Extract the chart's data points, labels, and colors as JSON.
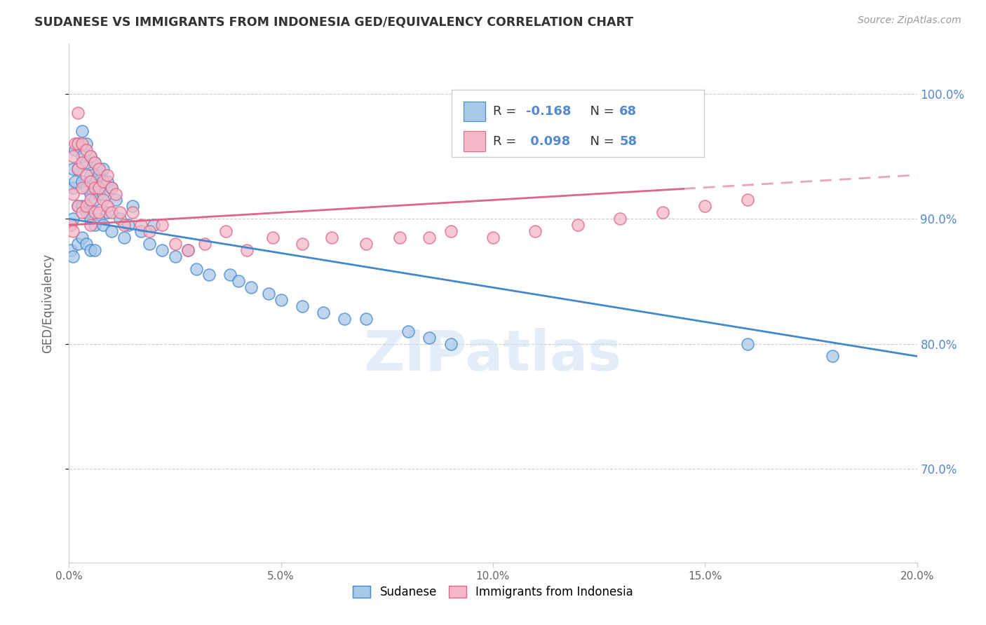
{
  "title": "SUDANESE VS IMMIGRANTS FROM INDONESIA GED/EQUIVALENCY CORRELATION CHART",
  "source": "Source: ZipAtlas.com",
  "ylabel": "GED/Equivalency",
  "yticks": [
    0.7,
    0.8,
    0.9,
    1.0
  ],
  "ytick_labels": [
    "70.0%",
    "80.0%",
    "90.0%",
    "100.0%"
  ],
  "xticks": [
    0.0,
    0.05,
    0.1,
    0.15,
    0.2
  ],
  "xtick_labels": [
    "0.0%",
    "5.0%",
    "10.0%",
    "15.0%",
    "20.0%"
  ],
  "xmin": 0.0,
  "xmax": 0.2,
  "ymin": 0.625,
  "ymax": 1.04,
  "blue_color": "#a8c8e8",
  "pink_color": "#f4b8c8",
  "blue_line_color": "#4488cc",
  "pink_line_color": "#dd6688",
  "watermark": "ZIPatlas",
  "legend_blue_R": "-0.168",
  "legend_blue_N": "68",
  "legend_pink_R": "0.098",
  "legend_pink_N": "58",
  "sudanese_x": [
    0.0005,
    0.001,
    0.001,
    0.001,
    0.001,
    0.0015,
    0.0015,
    0.002,
    0.002,
    0.002,
    0.002,
    0.003,
    0.003,
    0.003,
    0.003,
    0.003,
    0.004,
    0.004,
    0.004,
    0.004,
    0.004,
    0.005,
    0.005,
    0.005,
    0.005,
    0.005,
    0.006,
    0.006,
    0.006,
    0.006,
    0.006,
    0.007,
    0.007,
    0.007,
    0.008,
    0.008,
    0.008,
    0.009,
    0.009,
    0.01,
    0.01,
    0.011,
    0.012,
    0.013,
    0.014,
    0.015,
    0.017,
    0.019,
    0.02,
    0.022,
    0.025,
    0.028,
    0.03,
    0.033,
    0.038,
    0.04,
    0.043,
    0.047,
    0.05,
    0.055,
    0.06,
    0.065,
    0.07,
    0.08,
    0.085,
    0.09,
    0.16,
    0.18
  ],
  "sudanese_y": [
    0.875,
    0.925,
    0.94,
    0.9,
    0.87,
    0.955,
    0.93,
    0.96,
    0.94,
    0.91,
    0.88,
    0.97,
    0.95,
    0.93,
    0.91,
    0.885,
    0.96,
    0.945,
    0.925,
    0.905,
    0.88,
    0.95,
    0.935,
    0.92,
    0.9,
    0.875,
    0.945,
    0.93,
    0.915,
    0.895,
    0.875,
    0.935,
    0.92,
    0.9,
    0.94,
    0.92,
    0.895,
    0.93,
    0.905,
    0.925,
    0.89,
    0.915,
    0.9,
    0.885,
    0.895,
    0.91,
    0.89,
    0.88,
    0.895,
    0.875,
    0.87,
    0.875,
    0.86,
    0.855,
    0.855,
    0.85,
    0.845,
    0.84,
    0.835,
    0.83,
    0.825,
    0.82,
    0.82,
    0.81,
    0.805,
    0.8,
    0.8,
    0.79
  ],
  "indonesia_x": [
    0.0005,
    0.001,
    0.001,
    0.001,
    0.0015,
    0.002,
    0.002,
    0.002,
    0.002,
    0.003,
    0.003,
    0.003,
    0.003,
    0.004,
    0.004,
    0.004,
    0.005,
    0.005,
    0.005,
    0.005,
    0.006,
    0.006,
    0.006,
    0.007,
    0.007,
    0.007,
    0.008,
    0.008,
    0.009,
    0.009,
    0.01,
    0.01,
    0.011,
    0.012,
    0.013,
    0.015,
    0.017,
    0.019,
    0.022,
    0.025,
    0.028,
    0.032,
    0.037,
    0.042,
    0.048,
    0.055,
    0.062,
    0.07,
    0.078,
    0.085,
    0.09,
    0.1,
    0.11,
    0.12,
    0.13,
    0.14,
    0.15,
    0.16
  ],
  "indonesia_y": [
    0.895,
    0.92,
    0.95,
    0.89,
    0.96,
    0.985,
    0.96,
    0.94,
    0.91,
    0.96,
    0.945,
    0.925,
    0.905,
    0.955,
    0.935,
    0.91,
    0.95,
    0.93,
    0.915,
    0.895,
    0.945,
    0.925,
    0.905,
    0.94,
    0.925,
    0.905,
    0.93,
    0.915,
    0.935,
    0.91,
    0.925,
    0.905,
    0.92,
    0.905,
    0.895,
    0.905,
    0.895,
    0.89,
    0.895,
    0.88,
    0.875,
    0.88,
    0.89,
    0.875,
    0.885,
    0.88,
    0.885,
    0.88,
    0.885,
    0.885,
    0.89,
    0.885,
    0.89,
    0.895,
    0.9,
    0.905,
    0.91,
    0.915
  ]
}
